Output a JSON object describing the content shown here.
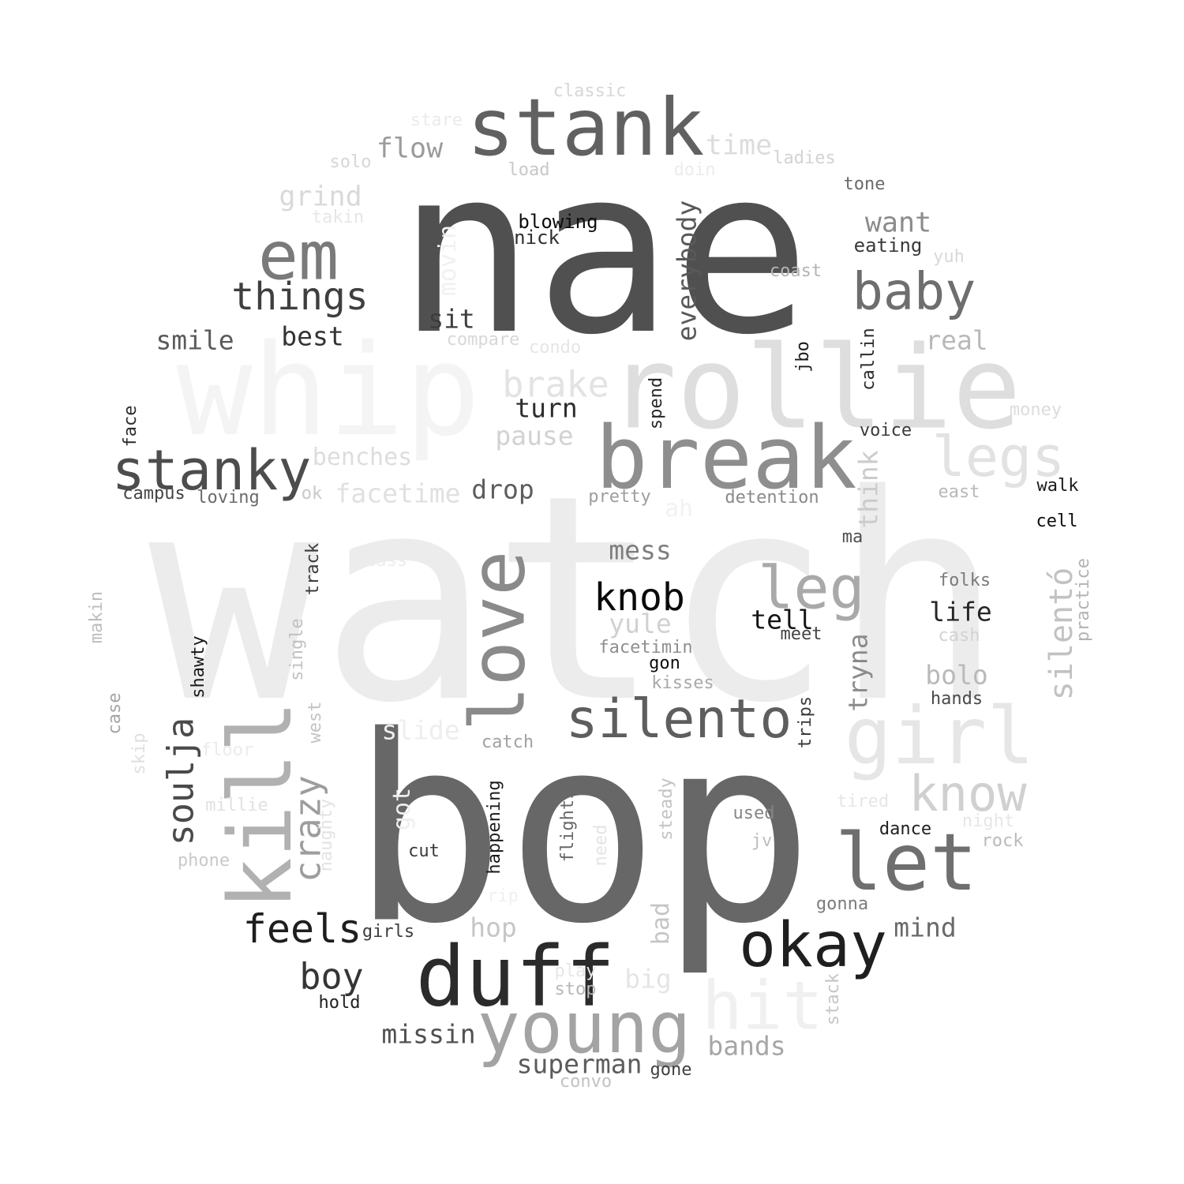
{
  "words": [
    {
      "id": "watch",
      "text": "watch",
      "shade": "#ececec"
    },
    {
      "id": "bop",
      "text": "bop",
      "shade": "#676767"
    },
    {
      "id": "nae",
      "text": "nae",
      "shade": "#505050"
    },
    {
      "id": "whip",
      "text": "whip",
      "shade": "#f4f4f4"
    },
    {
      "id": "rollie",
      "text": "rollie",
      "shade": "#dedede"
    },
    {
      "id": "break",
      "text": "break",
      "shade": "#8e8e8e"
    },
    {
      "id": "stank",
      "text": "stank",
      "shade": "#616161"
    },
    {
      "id": "duff",
      "text": "duff",
      "shade": "#2b2b2b"
    },
    {
      "id": "kill",
      "text": "kill",
      "shade": "#b1b1b1"
    },
    {
      "id": "girl",
      "text": "girl",
      "shade": "#e6e6e6"
    },
    {
      "id": "love",
      "text": "love",
      "shade": "#8a8a8a"
    },
    {
      "id": "em",
      "text": "em",
      "shade": "#7a7a7a"
    },
    {
      "id": "let",
      "text": "let",
      "shade": "#6f6f6f"
    },
    {
      "id": "young",
      "text": "young",
      "shade": "#a3a3a3"
    },
    {
      "id": "stanky",
      "text": "stanky",
      "shade": "#4d4d4d"
    },
    {
      "id": "silento",
      "text": "silento",
      "shade": "#5e5e5e"
    },
    {
      "id": "okay",
      "text": "okay",
      "shade": "#1f1f1f"
    },
    {
      "id": "baby",
      "text": "baby",
      "shade": "#6e6e6e"
    },
    {
      "id": "legs",
      "text": "legs",
      "shade": "#e2e2e2"
    },
    {
      "id": "hit",
      "text": "hit",
      "shade": "#f0f0f0"
    },
    {
      "id": "leg",
      "text": "leg",
      "shade": "#a9a9a9"
    },
    {
      "id": "know",
      "text": "know",
      "shade": "#d0d0d0"
    },
    {
      "id": "feels",
      "text": "feels",
      "shade": "#1e1e1e"
    },
    {
      "id": "things",
      "text": "things",
      "shade": "#3f3f3f"
    },
    {
      "id": "knob",
      "text": "knob",
      "shade": "#0a0a0a"
    },
    {
      "id": "crazy",
      "text": "crazy",
      "shade": "#9d9d9d"
    },
    {
      "id": "soulja",
      "text": "soulja",
      "shade": "#4a4a4a"
    },
    {
      "id": "silent_o",
      "text": "silentó",
      "shade": "#c2c2c2"
    },
    {
      "id": "brake",
      "text": "brake",
      "shade": "#e3e3e3"
    },
    {
      "id": "boy",
      "text": "boy",
      "shade": "#353535"
    },
    {
      "id": "everybody",
      "text": "everybody",
      "shade": "#595959"
    },
    {
      "id": "flow",
      "text": "flow",
      "shade": "#9b9b9b"
    },
    {
      "id": "time",
      "text": "time",
      "shade": "#dcdcdc"
    },
    {
      "id": "grind",
      "text": "grind",
      "shade": "#d9d9d9"
    },
    {
      "id": "want",
      "text": "want",
      "shade": "#8c8c8c"
    },
    {
      "id": "smile",
      "text": "smile",
      "shade": "#5a5a5a"
    },
    {
      "id": "best",
      "text": "best",
      "shade": "#333333"
    },
    {
      "id": "sit",
      "text": "sit",
      "shade": "#3d3d3d"
    },
    {
      "id": "real",
      "text": "real",
      "shade": "#b8b8b8"
    },
    {
      "id": "turn",
      "text": "turn",
      "shade": "#2e2e2e"
    },
    {
      "id": "pause",
      "text": "pause",
      "shade": "#d2d2d2"
    },
    {
      "id": "benches",
      "text": "benches",
      "shade": "#dddddd"
    },
    {
      "id": "facetime",
      "text": "facetime",
      "shade": "#e0e0e0"
    },
    {
      "id": "drop",
      "text": "drop",
      "shade": "#5d5d5d"
    },
    {
      "id": "think",
      "text": "think",
      "shade": "#cbcbcb"
    },
    {
      "id": "movin",
      "text": "movin",
      "shade": "#f1f1f1"
    },
    {
      "id": "mess",
      "text": "mess",
      "shade": "#7d7d7d"
    },
    {
      "id": "tell",
      "text": "tell",
      "shade": "#141414"
    },
    {
      "id": "life",
      "text": "life",
      "shade": "#262626"
    },
    {
      "id": "tryna",
      "text": "tryna",
      "shade": "#8b8b8b"
    },
    {
      "id": "yule",
      "text": "yule",
      "shade": "#d1d1d1"
    },
    {
      "id": "bolo",
      "text": "bolo",
      "shade": "#b9b9b9"
    },
    {
      "id": "slide",
      "text": "slide",
      "shade": "#eeeeee"
    },
    {
      "id": "mind",
      "text": "mind",
      "shade": "#6a6a6a"
    },
    {
      "id": "hop",
      "text": "hop",
      "shade": "#c6c6c6"
    },
    {
      "id": "missin",
      "text": "missin",
      "shade": "#505050"
    },
    {
      "id": "superman",
      "text": "superman",
      "shade": "#5c5c5c"
    },
    {
      "id": "bands",
      "text": "bands",
      "shade": "#a6a6a6"
    },
    {
      "id": "big",
      "text": "big",
      "shade": "#e5e5e5"
    },
    {
      "id": "bad",
      "text": "bad",
      "shade": "#c5c5c5"
    },
    {
      "id": "got",
      "text": "got",
      "shade": "#eeeeee"
    },
    {
      "id": "ah",
      "text": "ah",
      "shade": "#f2f2f2"
    },
    {
      "id": "classic",
      "text": "classic",
      "shade": "#d7d7d7"
    },
    {
      "id": "stare",
      "text": "stare",
      "shade": "#ebebeb"
    },
    {
      "id": "solo",
      "text": "solo",
      "shade": "#d6d6d6"
    },
    {
      "id": "load",
      "text": "load",
      "shade": "#c8c8c8"
    },
    {
      "id": "doin",
      "text": "doin",
      "shade": "#ececec"
    },
    {
      "id": "ladies",
      "text": "ladies",
      "shade": "#d3d3d3"
    },
    {
      "id": "tone",
      "text": "tone",
      "shade": "#6a6a6a"
    },
    {
      "id": "takin",
      "text": "takin",
      "shade": "#e6e6e6"
    },
    {
      "id": "blowing",
      "text": "blowing",
      "shade": "#0d0d0d"
    },
    {
      "id": "nick",
      "text": "nick",
      "shade": "#2f2f2f"
    },
    {
      "id": "eating",
      "text": "eating",
      "shade": "#3a3a3a"
    },
    {
      "id": "yuh",
      "text": "yuh",
      "shade": "#d9d9d9"
    },
    {
      "id": "coast",
      "text": "coast",
      "shade": "#b3b3b3"
    },
    {
      "id": "compare",
      "text": "compare",
      "shade": "#d8d8d8"
    },
    {
      "id": "condo",
      "text": "condo",
      "shade": "#e5e5e5"
    },
    {
      "id": "jbo",
      "text": "jbo",
      "shade": "#1a1a1a"
    },
    {
      "id": "callin",
      "text": "callin",
      "shade": "#2a2a2a"
    },
    {
      "id": "spend",
      "text": "spend",
      "shade": "#262626"
    },
    {
      "id": "money",
      "text": "money",
      "shade": "#dcdcdc"
    },
    {
      "id": "voice",
      "text": "voice",
      "shade": "#3a3a3a"
    },
    {
      "id": "face",
      "text": "face",
      "shade": "#2d2d2d"
    },
    {
      "id": "campus",
      "text": "campus",
      "shade": "#444444"
    },
    {
      "id": "loving",
      "text": "loving",
      "shade": "#6a6a6a"
    },
    {
      "id": "ok",
      "text": "ok",
      "shade": "#c8c8c8"
    },
    {
      "id": "pretty",
      "text": "pretty",
      "shade": "#9e9e9e"
    },
    {
      "id": "detention",
      "text": "detention",
      "shade": "#8a8a8a"
    },
    {
      "id": "east",
      "text": "east",
      "shade": "#b8b8b8"
    },
    {
      "id": "walk",
      "text": "walk",
      "shade": "#1b1b1b"
    },
    {
      "id": "cell",
      "text": "cell",
      "shade": "#0e0e0e"
    },
    {
      "id": "ma",
      "text": "ma",
      "shade": "#4e4e4e"
    },
    {
      "id": "class",
      "text": "class",
      "shade": "#ececec"
    },
    {
      "id": "track",
      "text": "track",
      "shade": "#3c3c3c"
    },
    {
      "id": "folks",
      "text": "folks",
      "shade": "#7b7b7b"
    },
    {
      "id": "practice",
      "text": "practice",
      "shade": "#b3b3b3"
    },
    {
      "id": "cash",
      "text": "cash",
      "shade": "#d3d3d3"
    },
    {
      "id": "meet",
      "text": "meet",
      "shade": "#444444"
    },
    {
      "id": "facetimin",
      "text": "facetimin",
      "shade": "#8f8f8f"
    },
    {
      "id": "gon",
      "text": "gon",
      "shade": "#0e0e0e"
    },
    {
      "id": "kisses",
      "text": "kisses",
      "shade": "#a9a9a9"
    },
    {
      "id": "makin",
      "text": "makin",
      "shade": "#bdbdbd"
    },
    {
      "id": "shawty",
      "text": "shawty",
      "shade": "#1a1a1a"
    },
    {
      "id": "single",
      "text": "single",
      "shade": "#c1c1c1"
    },
    {
      "id": "hands",
      "text": "hands",
      "shade": "#4a4a4a"
    },
    {
      "id": "case",
      "text": "case",
      "shade": "#a4a4a4"
    },
    {
      "id": "west",
      "text": "west",
      "shade": "#c3c3c3"
    },
    {
      "id": "trips",
      "text": "trips",
      "shade": "#3a3a3a"
    },
    {
      "id": "skip",
      "text": "skip",
      "shade": "#e0e0e0"
    },
    {
      "id": "floor",
      "text": "floor",
      "shade": "#ebebeb"
    },
    {
      "id": "catch",
      "text": "catch",
      "shade": "#a1a1a1"
    },
    {
      "id": "millie",
      "text": "millie",
      "shade": "#e1e1e1"
    },
    {
      "id": "naughty",
      "text": "naughty",
      "shade": "#e3e3e3"
    },
    {
      "id": "steady",
      "text": "steady",
      "shade": "#c3c3c3"
    },
    {
      "id": "used",
      "text": "used",
      "shade": "#868686"
    },
    {
      "id": "tired",
      "text": "tired",
      "shade": "#e6e6e6"
    },
    {
      "id": "night",
      "text": "night",
      "shade": "#e6e6e6"
    },
    {
      "id": "happening",
      "text": "happening",
      "shade": "#1a1a1a"
    },
    {
      "id": "flights",
      "text": "flights",
      "shade": "#686868"
    },
    {
      "id": "need",
      "text": "need",
      "shade": "#e4e4e4"
    },
    {
      "id": "jv",
      "text": "jv",
      "shade": "#bdbdbd"
    },
    {
      "id": "dance",
      "text": "dance",
      "shade": "#1f1f1f"
    },
    {
      "id": "rock",
      "text": "rock",
      "shade": "#bababa"
    },
    {
      "id": "phone",
      "text": "phone",
      "shade": "#c9c9c9"
    },
    {
      "id": "cut",
      "text": "cut",
      "shade": "#3a3a3a"
    },
    {
      "id": "rip",
      "text": "rip",
      "shade": "#f0f0f0"
    },
    {
      "id": "gonna",
      "text": "gonna",
      "shade": "#7c7c7c"
    },
    {
      "id": "girls",
      "text": "girls",
      "shade": "#3d3d3d"
    },
    {
      "id": "play",
      "text": "play",
      "shade": "#e6e6e6"
    },
    {
      "id": "stop",
      "text": "stop",
      "shade": "#b7b7b7"
    },
    {
      "id": "stack",
      "text": "stack",
      "shade": "#c6c6c6"
    },
    {
      "id": "hold",
      "text": "hold",
      "shade": "#222222"
    },
    {
      "id": "convo",
      "text": "convo",
      "shade": "#c2c2c2"
    },
    {
      "id": "gone",
      "text": "gone",
      "shade": "#404040"
    }
  ]
}
